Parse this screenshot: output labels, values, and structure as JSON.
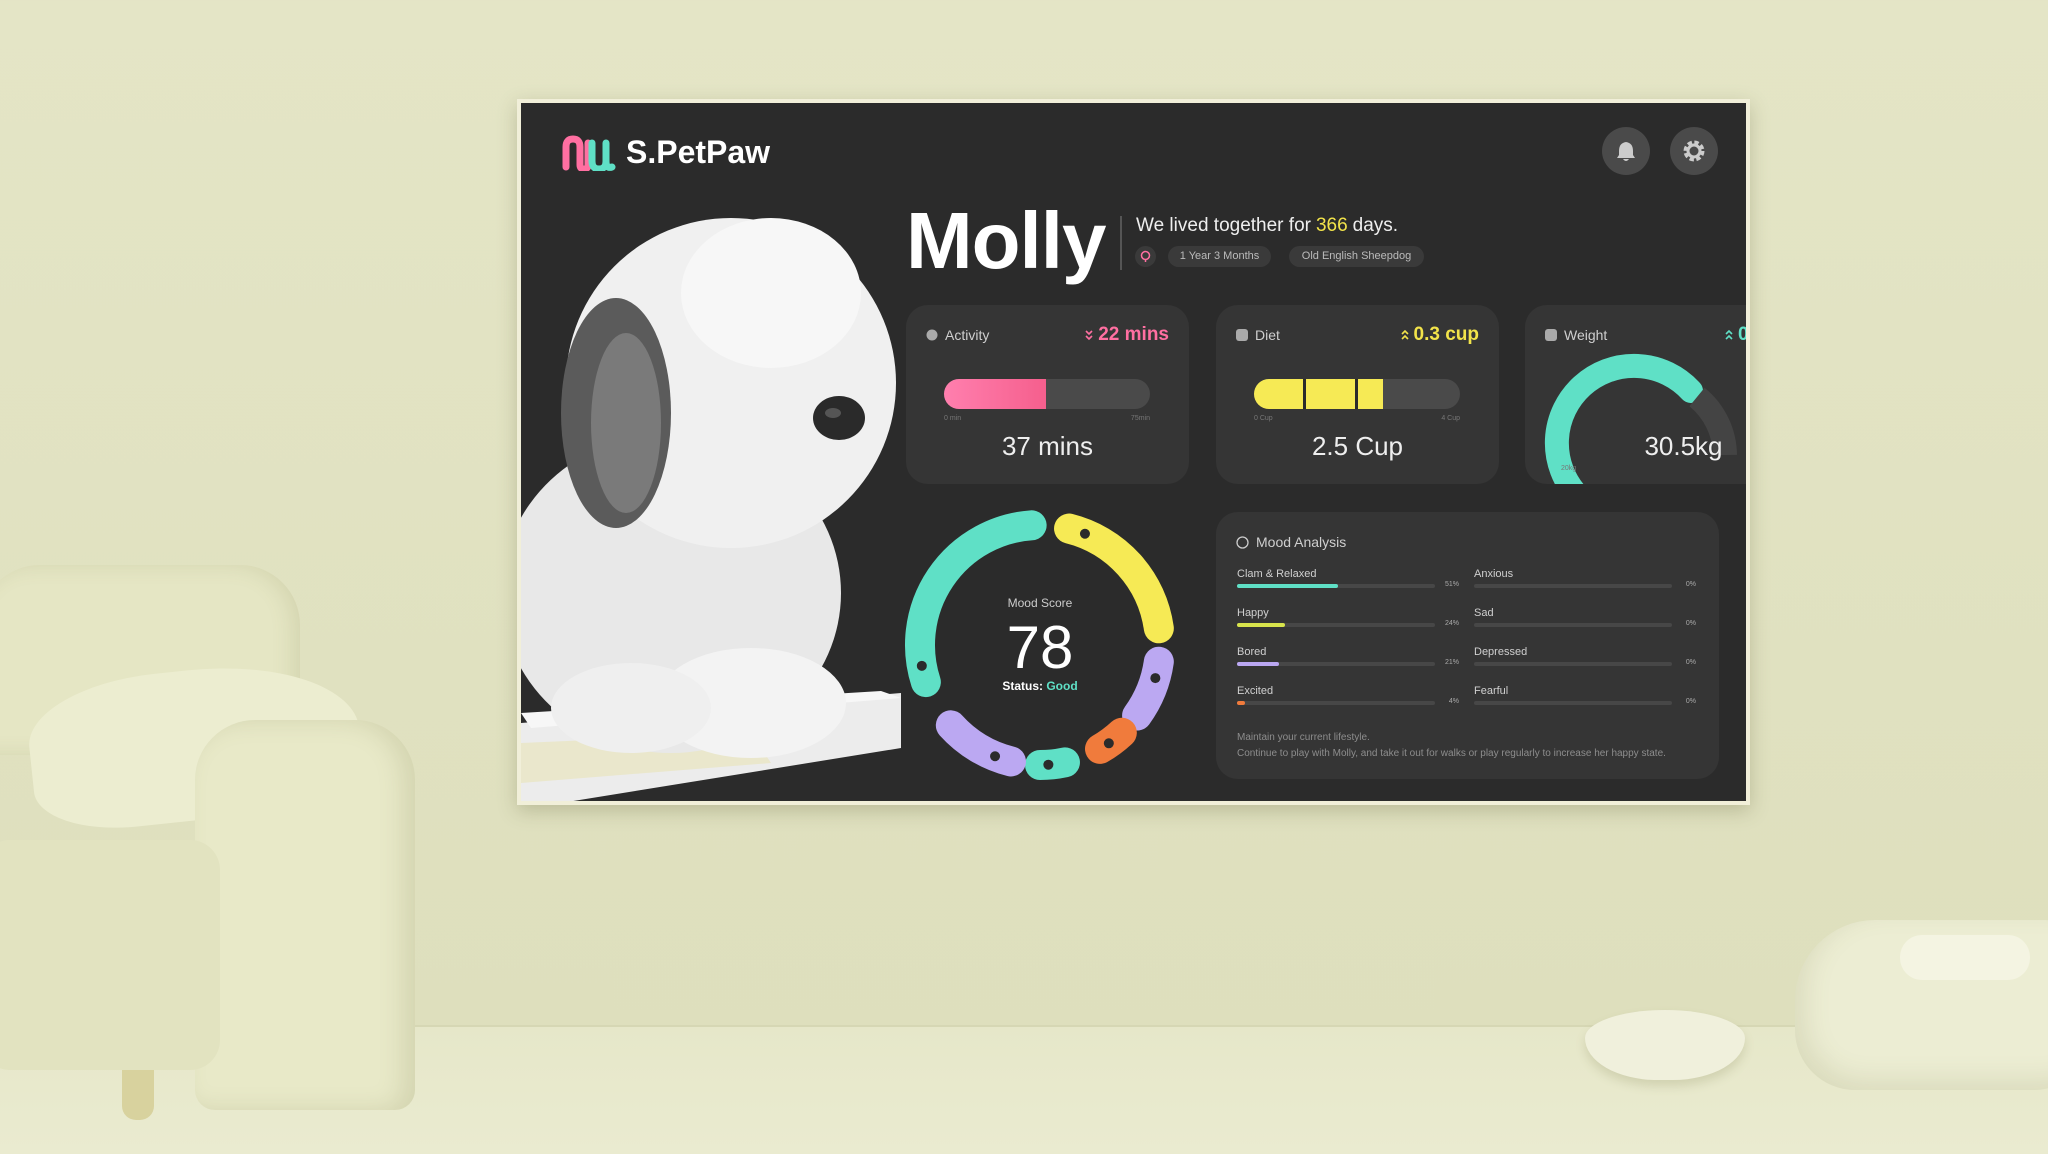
{
  "header": {
    "logo": "S.PetPaw"
  },
  "pet": {
    "name": "Molly",
    "together_prefix": "We lived together for",
    "together_days": 366,
    "together_suffix": "days.",
    "tags": [
      "1 Year 3 Months",
      "Old English Sheepdog"
    ]
  },
  "cards": {
    "activity": {
      "title": "Activity",
      "change": "22 mins",
      "value": 37,
      "value_label": "37 mins",
      "min": 0,
      "max": 75,
      "min_label": "0 min",
      "max_label": "75min"
    },
    "diet": {
      "title": "Diet",
      "change": "0.3 cup",
      "value": 2.5,
      "value_label": "2.5 Cup",
      "min": 0,
      "max": 4,
      "min_label": "0 Cup",
      "max_label": "4 Cup"
    },
    "weight": {
      "title": "Weight",
      "change": "0",
      "value_label": "30.5kg",
      "min_label": "20kg"
    }
  },
  "mood_score": {
    "title": "Mood Score",
    "value": 78,
    "status_label": "Status:",
    "status": "Good"
  },
  "mood_analysis": {
    "title": "Mood Analysis",
    "left": [
      {
        "label": "Clam & Relaxed",
        "value": 51,
        "value_label": "51%",
        "color": "#5fe0c6"
      },
      {
        "label": "Happy",
        "value": 24,
        "value_label": "24%",
        "color": "#d8e44c"
      },
      {
        "label": "Bored",
        "value": 21,
        "value_label": "21%",
        "color": "#bba8f2"
      },
      {
        "label": "Excited",
        "value": 4,
        "value_label": "4%",
        "color": "#f07b3c"
      }
    ],
    "right": [
      {
        "label": "Anxious",
        "value": 0,
        "value_label": "0%",
        "color": "#888888"
      },
      {
        "label": "Sad",
        "value": 0,
        "value_label": "0%",
        "color": "#888888"
      },
      {
        "label": "Depressed",
        "value": 0,
        "value_label": "0%",
        "color": "#888888"
      },
      {
        "label": "Fearful",
        "value": 0,
        "value_label": "0%",
        "color": "#888888"
      }
    ],
    "notes": [
      "Maintain your current lifestyle.",
      "Continue to play with Molly, and take it out for walks or play regularly to increase her happy state."
    ]
  }
}
